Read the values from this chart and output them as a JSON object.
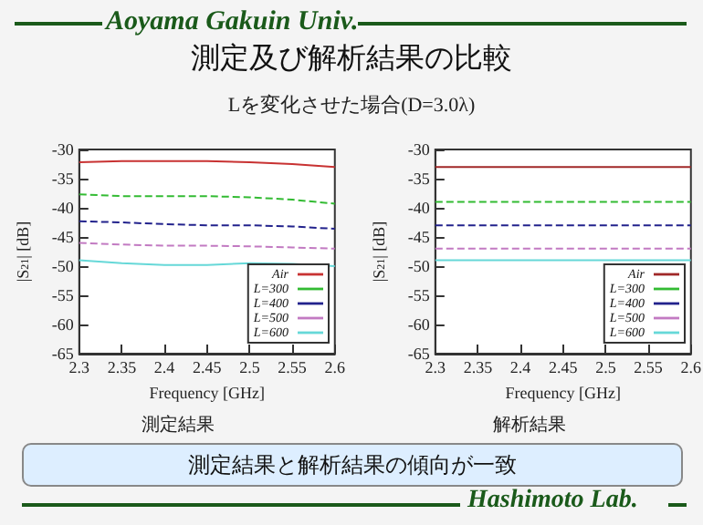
{
  "chart_data": [
    {
      "type": "line",
      "title": "測定及び解析結果の比較",
      "subtitle": "Lを変化させた場合(D=3.0λ)",
      "annotations": [
        "Aoyama Gakuin Univ.",
        "測定結果"
      ],
      "xlabel": "Frequency [GHz]",
      "ylabel": "|S$_{21}$| [dB]",
      "x": [
        2.3,
        2.35,
        2.4,
        2.45,
        2.5,
        2.55,
        2.6
      ],
      "series": [
        {
          "name": "Air",
          "color": "#c83232",
          "line_style": "solid",
          "values": [
            -32.2,
            -32,
            -32,
            -32,
            -32.2,
            -32.5,
            -33
          ]
        },
        {
          "name": "L=300",
          "color": "#33bb33",
          "line_style": "dashed",
          "values": [
            -37.7,
            -38,
            -38,
            -38,
            -38.2,
            -38.6,
            -39.3
          ]
        },
        {
          "name": "L=400",
          "color": "#22228c",
          "line_style": "dashed",
          "values": [
            -42.3,
            -42.5,
            -42.8,
            -43,
            -43,
            -43.2,
            -43.6
          ]
        },
        {
          "name": "L=500",
          "color": "#c27ac2",
          "line_style": "dashed",
          "values": [
            -46,
            -46.3,
            -46.5,
            -46.5,
            -46.6,
            -46.8,
            -47
          ]
        },
        {
          "name": "L=600",
          "color": "#66d8d8",
          "line_style": "solid",
          "values": [
            -49,
            -49.5,
            -49.8,
            -49.8,
            -49.5,
            -49.6,
            -50
          ]
        }
      ],
      "xlim": [
        2.3,
        2.6
      ],
      "xticks": [
        2.3,
        2.35,
        2.4,
        2.45,
        2.5,
        2.55,
        2.6
      ],
      "ylim": [
        -65,
        -30
      ],
      "yticks": [
        -65,
        -60,
        -55,
        -50,
        -45,
        -40,
        -35,
        -30
      ],
      "grid": false,
      "legend": "bottom right",
      "marker": "none"
    },
    {
      "type": "line",
      "title": "解析結果",
      "annotations": [
        "測定結果と解析結果の傾向が一致",
        "Hashimoto Lab."
      ],
      "xlabel": "Frequency [GHz]",
      "ylabel": "|S$_{21}$| [dB]",
      "x": [
        2.3,
        2.6
      ],
      "series": [
        {
          "name": "Air",
          "color": "#a02828",
          "line_style": "solid",
          "values": [
            -33,
            -33
          ]
        },
        {
          "name": "L=300",
          "color": "#33bb33",
          "line_style": "dashed",
          "values": [
            -39,
            -39
          ]
        },
        {
          "name": "L=400",
          "color": "#22228c",
          "line_style": "dashed",
          "values": [
            -43,
            -43
          ]
        },
        {
          "name": "L=500",
          "color": "#c27ac2",
          "line_style": "dashed",
          "values": [
            -47,
            -47
          ]
        },
        {
          "name": "L=600",
          "color": "#66d8d8",
          "line_style": "solid",
          "values": [
            -49,
            -49
          ]
        }
      ],
      "xlim": [
        2.3,
        2.6
      ],
      "xticks": [
        2.3,
        2.35,
        2.4,
        2.45,
        2.5,
        2.55,
        2.6
      ],
      "ylim": [
        -65,
        -30
      ],
      "yticks": [
        -65,
        -60,
        -55,
        -50,
        -45,
        -40,
        -35,
        -30
      ],
      "grid": false,
      "legend": "bottom right",
      "marker": "none"
    }
  ]
}
